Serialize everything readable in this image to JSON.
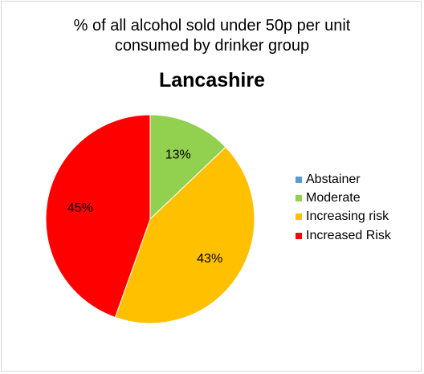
{
  "chart_data": {
    "type": "pie",
    "title_line1": "% of all alcohol sold under 50p per unit",
    "title_line2": "consumed  by drinker group",
    "subtitle": "Lancashire",
    "categories": [
      "Abstainer",
      "Moderate",
      "Increasing risk",
      "Increased Risk"
    ],
    "values": [
      0,
      13,
      43,
      45
    ],
    "data_labels": [
      "",
      "13%",
      "43%",
      "45%"
    ],
    "colors": [
      "#5b9bd5",
      "#92d050",
      "#ffc000",
      "#ff0000"
    ],
    "legend_position": "right"
  }
}
